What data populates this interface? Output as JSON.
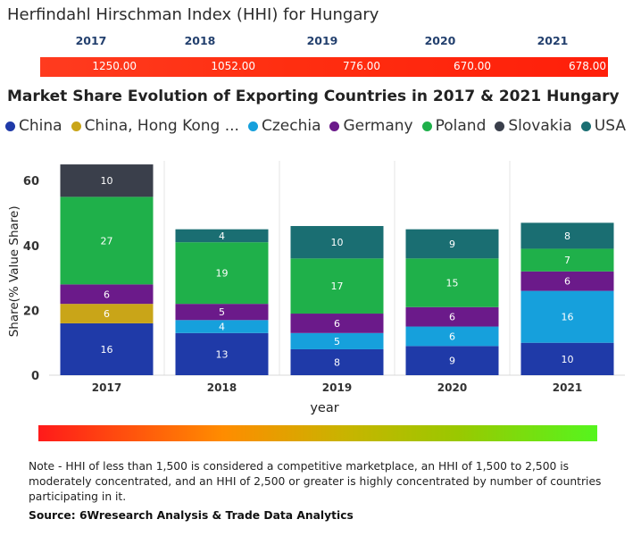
{
  "hhi": {
    "title": "Herfindahl Hirschman Index (HHI) for Hungary",
    "years": [
      "2017",
      "2018",
      "2019",
      "2020",
      "2021"
    ],
    "values": [
      "1250.00",
      "1052.00",
      "776.00",
      "670.00",
      "678.00"
    ]
  },
  "chart_data": {
    "type": "bar",
    "stacked": true,
    "title": "Market Share Evolution of Exporting Countries in 2017 & 2021 Hungary",
    "xlabel": "year",
    "ylabel": "Share(% Value Share)",
    "categories": [
      "2017",
      "2018",
      "2019",
      "2020",
      "2021"
    ],
    "ylim": [
      0,
      65
    ],
    "yticks": [
      0,
      20,
      40,
      60
    ],
    "grid": true,
    "legend_position": "top",
    "series": [
      {
        "name": "China",
        "color": "#1f3aa8",
        "values": [
          16,
          13,
          8,
          9,
          10
        ]
      },
      {
        "name": "China, Hong Kong ...",
        "color": "#c9a518",
        "values": [
          6,
          0,
          0,
          0,
          0
        ]
      },
      {
        "name": "Czechia",
        "color": "#16a0dc",
        "values": [
          0,
          4,
          5,
          6,
          16
        ]
      },
      {
        "name": "Germany",
        "color": "#6b1a8a",
        "values": [
          6,
          5,
          6,
          6,
          6
        ]
      },
      {
        "name": "Poland",
        "color": "#1fb04a",
        "values": [
          27,
          19,
          17,
          15,
          7
        ]
      },
      {
        "name": "Slovakia",
        "color": "#3a3f4b",
        "values": [
          10,
          0,
          0,
          0,
          0
        ]
      },
      {
        "name": "USA",
        "color": "#1a6e72",
        "values": [
          0,
          4,
          10,
          9,
          8
        ]
      }
    ]
  },
  "note": "Note - HHI of less than 1,500 is considered a competitive marketplace, an HHI of 1,500 to 2,500 is moderately concentrated, and an HHI of 2,500 or greater is highly concentrated by number of countries participating in it.",
  "source": "Source: 6Wresearch Analysis & Trade Data Analytics"
}
